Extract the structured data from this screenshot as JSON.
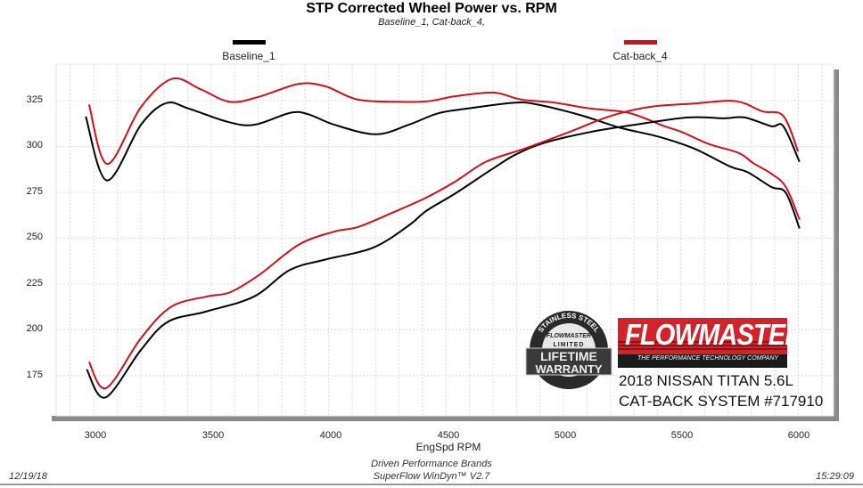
{
  "chart_data": {
    "type": "line",
    "title": "STP Corrected Wheel Power vs. RPM",
    "subtitle": "Baseline_1, Cat-back_4,",
    "xlabel": "EngSpd  RPM",
    "ylabel": "",
    "xlim": [
      2840,
      6150
    ],
    "ylim": [
      153,
      345
    ],
    "grid": true,
    "legend_position": "top",
    "x_ticks": [
      "3000",
      "3500",
      "4000",
      "4500",
      "5000",
      "5500",
      "6000"
    ],
    "y_ticks": [
      "325",
      "300",
      "275",
      "250",
      "225",
      "200",
      "175"
    ],
    "legend": [
      {
        "name": "Baseline_1",
        "color": "#000000"
      },
      {
        "name": "Cat-back_4",
        "color": "#d0101a"
      }
    ],
    "series": [
      {
        "name": "Baseline_1",
        "color": "#000000",
        "points": [
          [
            2966,
            316.4
          ],
          [
            3056,
            281.5
          ],
          [
            3201,
            311.9
          ],
          [
            3308,
            323.7
          ],
          [
            3403,
            320.8
          ],
          [
            3570,
            313.5
          ],
          [
            3684,
            311.9
          ],
          [
            3836,
            318.4
          ],
          [
            3912,
            317.7
          ],
          [
            4025,
            311.9
          ],
          [
            4200,
            306.7
          ],
          [
            4341,
            311.9
          ],
          [
            4466,
            318.1
          ],
          [
            4594,
            320.8
          ],
          [
            4797,
            324.0
          ],
          [
            4898,
            322.7
          ],
          [
            5074,
            317.1
          ],
          [
            5240,
            310.3
          ],
          [
            5404,
            305.4
          ],
          [
            5556,
            298.9
          ],
          [
            5708,
            289.2
          ],
          [
            5784,
            286.0
          ],
          [
            5885,
            277.9
          ],
          [
            5947,
            274.7
          ],
          [
            6005,
            255.3
          ]
        ]
      },
      {
        "name": "Cat-back_4",
        "color": "#d0101a",
        "points": [
          [
            2980,
            322.9
          ],
          [
            3058,
            290.5
          ],
          [
            3201,
            321.6
          ],
          [
            3334,
            337.0
          ],
          [
            3455,
            331.3
          ],
          [
            3581,
            324.4
          ],
          [
            3707,
            327.3
          ],
          [
            3872,
            334.2
          ],
          [
            3986,
            332.9
          ],
          [
            4125,
            325.6
          ],
          [
            4314,
            324.4
          ],
          [
            4428,
            324.8
          ],
          [
            4531,
            327.3
          ],
          [
            4670,
            329.4
          ],
          [
            4732,
            328.9
          ],
          [
            4822,
            325.6
          ],
          [
            4960,
            324.0
          ],
          [
            5112,
            320.8
          ],
          [
            5278,
            318.4
          ],
          [
            5430,
            311.1
          ],
          [
            5505,
            307.9
          ],
          [
            5619,
            301.4
          ],
          [
            5746,
            296.5
          ],
          [
            5809,
            290.9
          ],
          [
            5885,
            285.2
          ],
          [
            5947,
            277.9
          ],
          [
            6005,
            260.1
          ]
        ]
      },
      {
        "name": "Baseline_1",
        "color": "#000000",
        "points": [
          [
            2970,
            178.4
          ],
          [
            3049,
            163.0
          ],
          [
            3201,
            189.0
          ],
          [
            3315,
            204.3
          ],
          [
            3480,
            210.0
          ],
          [
            3682,
            218.1
          ],
          [
            3834,
            232.6
          ],
          [
            3986,
            238.3
          ],
          [
            4189,
            244.8
          ],
          [
            4341,
            256.9
          ],
          [
            4417,
            265.0
          ],
          [
            4543,
            274.7
          ],
          [
            4695,
            287.6
          ],
          [
            4797,
            295.7
          ],
          [
            4923,
            302.2
          ],
          [
            5113,
            307.9
          ],
          [
            5303,
            311.9
          ],
          [
            5531,
            315.9
          ],
          [
            5683,
            315.4
          ],
          [
            5771,
            315.9
          ],
          [
            5885,
            311.1
          ],
          [
            5936,
            311.1
          ],
          [
            6005,
            291.7
          ]
        ]
      },
      {
        "name": "Cat-back_4",
        "color": "#d0101a",
        "points": [
          [
            2980,
            182.4
          ],
          [
            3053,
            168.2
          ],
          [
            3201,
            195.4
          ],
          [
            3328,
            212.4
          ],
          [
            3480,
            218.1
          ],
          [
            3581,
            220.5
          ],
          [
            3707,
            230.2
          ],
          [
            3872,
            246.4
          ],
          [
            4024,
            253.6
          ],
          [
            4125,
            256.1
          ],
          [
            4277,
            264.2
          ],
          [
            4417,
            272.2
          ],
          [
            4543,
            281.2
          ],
          [
            4670,
            291.7
          ],
          [
            4835,
            298.9
          ],
          [
            5024,
            307.9
          ],
          [
            5201,
            316.7
          ],
          [
            5366,
            321.6
          ],
          [
            5556,
            323.5
          ],
          [
            5733,
            324.8
          ],
          [
            5847,
            319.2
          ],
          [
            5936,
            316.7
          ],
          [
            5999,
            297.3
          ]
        ]
      }
    ]
  },
  "footer": {
    "line1": "Driven Performance Brands",
    "line2": "SuperFlow WinDyn™  V2.7",
    "date": "12/19/18",
    "time": "15:29:09"
  },
  "branding": {
    "warranty_badge": {
      "arc": "STAINLESS STEEL",
      "brand": "FLOWMASTER",
      "line1": "LIMITED",
      "line2": "LIFETIME",
      "line3": "WARRANTY"
    },
    "logo_name": "FLOWMASTER",
    "logo_tagline": "THE PERFORMANCE TECHNOLOGY COMPANY",
    "caption_line1": "2018 NISSAN TITAN 5.6L",
    "caption_line2": "CAT-BACK SYSTEM #717910"
  }
}
